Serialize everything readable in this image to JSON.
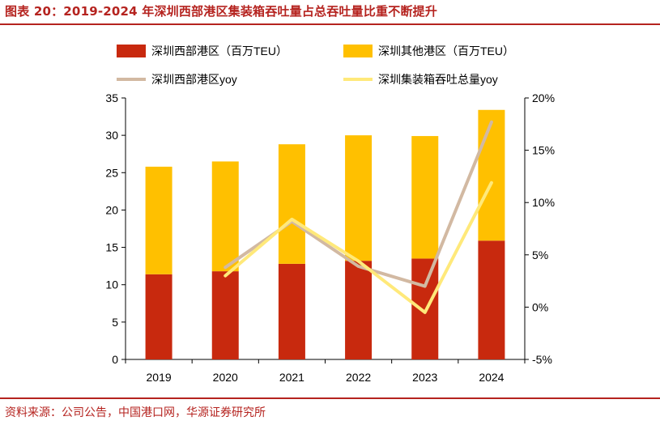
{
  "header": {
    "title": "图表 20：2019-2024 年深圳西部港区集装箱吞吐量占总吞吐量比重不断提升"
  },
  "footer": {
    "source": "资料来源：公司公告，中国港口网，华源证券研究所"
  },
  "colors": {
    "brand": "#B5231F",
    "west_port_bar": "#C8290E",
    "other_port_bar": "#FFC000",
    "west_port_yoy": "#D2B9A2",
    "total_yoy": "#FFE97A",
    "axis": "#000000"
  },
  "chart_data": {
    "type": "bar",
    "stacked": true,
    "categories": [
      "2019",
      "2020",
      "2021",
      "2022",
      "2023",
      "2024"
    ],
    "series": [
      {
        "name": "深圳西部港区（百万TEU）",
        "kind": "bar",
        "axis": "left",
        "values": [
          11.4,
          11.8,
          12.8,
          13.2,
          13.5,
          15.9
        ]
      },
      {
        "name": "深圳其他港区（百万TEU）",
        "kind": "bar",
        "axis": "left",
        "values": [
          14.4,
          14.7,
          16.0,
          16.8,
          16.4,
          17.5
        ]
      },
      {
        "name": "深圳西部港区yoy",
        "kind": "line",
        "axis": "right",
        "values": [
          null,
          3.8,
          8.2,
          3.9,
          2.0,
          17.7
        ]
      },
      {
        "name": "深圳集装箱吞吐总量yoy",
        "kind": "line",
        "axis": "right",
        "values": [
          null,
          3.0,
          8.4,
          4.4,
          -0.5,
          11.9
        ]
      }
    ],
    "y_left": {
      "min": 0,
      "max": 35,
      "step": 5,
      "ticks": [
        "0",
        "5",
        "10",
        "15",
        "20",
        "25",
        "30",
        "35"
      ]
    },
    "y_right": {
      "min": -5,
      "max": 20,
      "step": 5,
      "ticks": [
        "-5%",
        "0%",
        "5%",
        "10%",
        "15%",
        "20%"
      ]
    },
    "legend": {
      "position": "top",
      "columns": 2
    },
    "grid": false
  }
}
